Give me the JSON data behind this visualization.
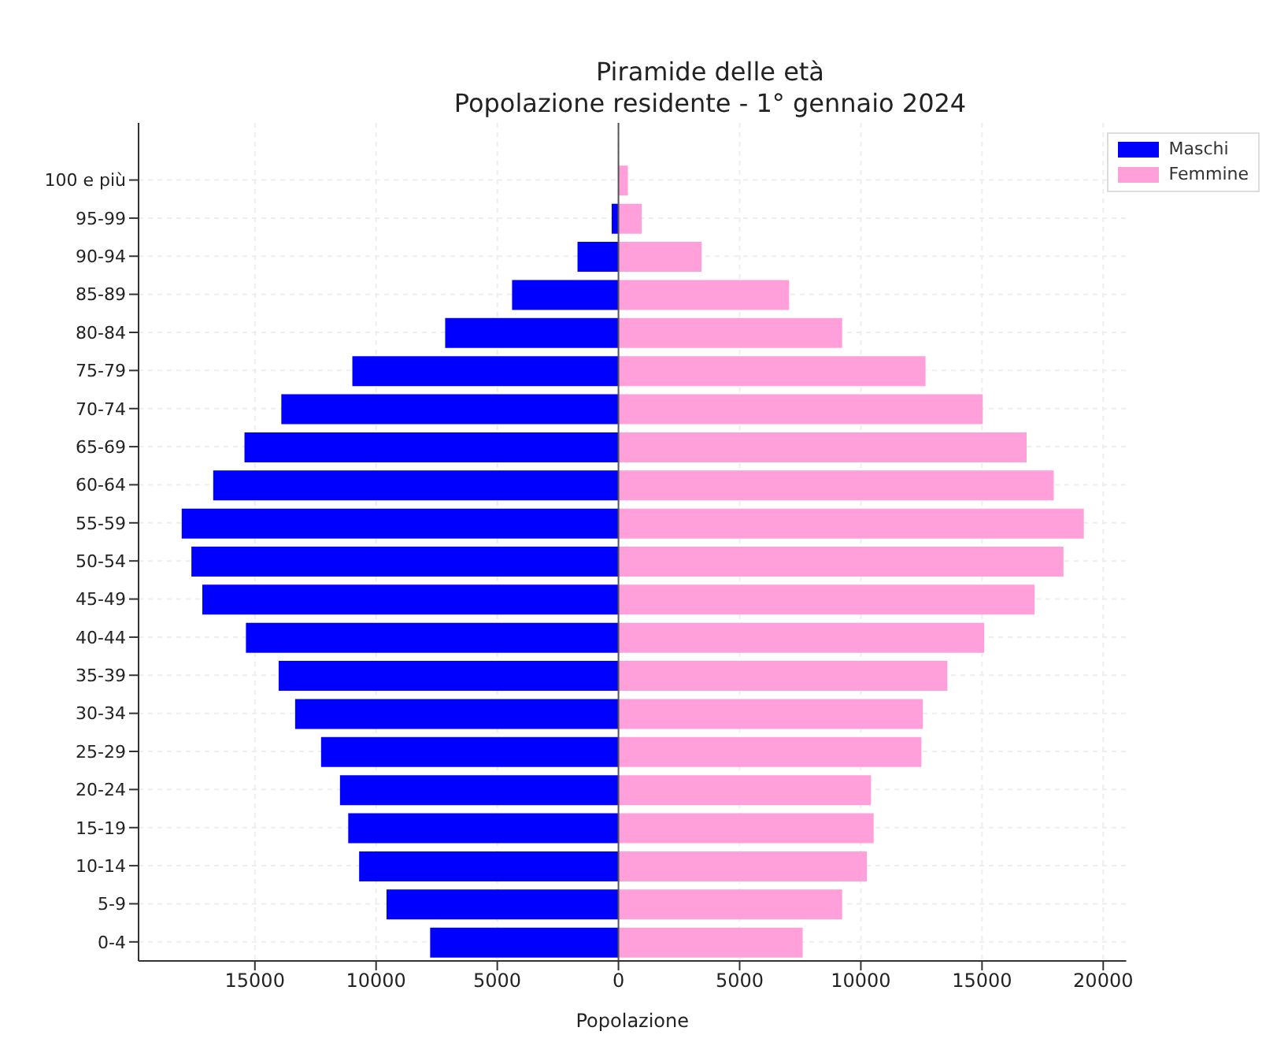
{
  "chart_data": {
    "type": "bar",
    "orientation": "horizontal",
    "title": "Piramide delle età",
    "subtitle": "Popolazione residente - 1° gennaio 2024",
    "xlabel": "Popolazione",
    "categories": [
      "100 e più",
      "95-99",
      "90-94",
      "85-89",
      "80-84",
      "75-79",
      "70-74",
      "65-69",
      "60-64",
      "55-59",
      "50-54",
      "45-49",
      "40-44",
      "35-39",
      "30-34",
      "25-29",
      "20-24",
      "15-19",
      "10-14",
      "5-9",
      "0-4"
    ],
    "series": [
      {
        "name": "Maschi",
        "color": "#0000ff",
        "values": [
          0,
          -280,
          -1690,
          -4390,
          -7150,
          -10980,
          -13910,
          -15430,
          -16720,
          -18020,
          -17620,
          -17170,
          -15370,
          -14020,
          -13340,
          -12270,
          -11490,
          -11150,
          -10700,
          -9570,
          -7770
        ]
      },
      {
        "name": "Femmine",
        "color": "#ffa0da",
        "values": [
          390,
          960,
          3430,
          7040,
          9230,
          12670,
          15030,
          16840,
          17960,
          19200,
          18360,
          17170,
          15090,
          13570,
          12560,
          12500,
          10420,
          10530,
          10250,
          9230,
          7600
        ]
      }
    ],
    "xlim": [
      -19800,
      20950
    ],
    "xticks": [
      {
        "value": -15000,
        "label": "15000"
      },
      {
        "value": -10000,
        "label": "10000"
      },
      {
        "value": -5000,
        "label": "5000"
      },
      0,
      5000,
      10000,
      15000,
      20000
    ],
    "ref_lines": [
      {
        "axis": "x",
        "value": 0,
        "color": "#555555"
      }
    ],
    "grid": true,
    "legend": "top right",
    "stacked": true
  }
}
